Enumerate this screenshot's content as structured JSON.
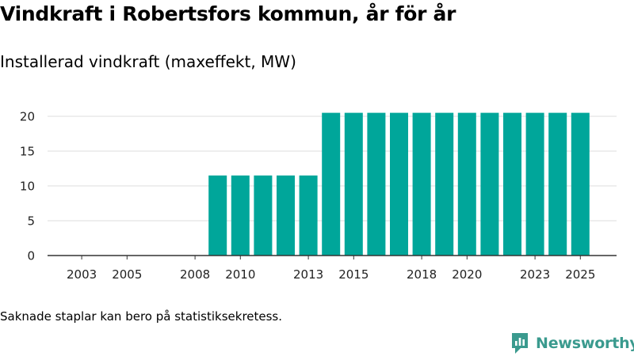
{
  "header": {
    "title": "Vindkraft i Robertsfors kommun, år för år",
    "subtitle": "Installerad vindkraft (maxeffekt, MW)"
  },
  "footer": {
    "note": "Saknade staplar kan bero på statistiksekretess.",
    "brand": "Newsworthy"
  },
  "colors": {
    "bar": "#00a69a",
    "grid": "#dddddd",
    "axis": "#333333",
    "brand": "#3a9a8e"
  },
  "chart_data": {
    "type": "bar",
    "title": "Vindkraft i Robertsfors kommun, år för år",
    "subtitle": "Installerad vindkraft (maxeffekt, MW)",
    "xlabel": "",
    "ylabel": "",
    "categories": [
      2002,
      2003,
      2004,
      2005,
      2006,
      2007,
      2008,
      2009,
      2010,
      2011,
      2012,
      2013,
      2014,
      2015,
      2016,
      2017,
      2018,
      2019,
      2020,
      2021,
      2022,
      2023,
      2024,
      2025
    ],
    "values": [
      0,
      0,
      0,
      0,
      0,
      0,
      0,
      11.5,
      11.5,
      11.5,
      11.5,
      11.5,
      20.5,
      20.5,
      20.5,
      20.5,
      20.5,
      20.5,
      20.5,
      20.5,
      20.5,
      20.5,
      20.5,
      20.5
    ],
    "x_tick_labels": [
      "2003",
      "2005",
      "2008",
      "2010",
      "2013",
      "2015",
      "2018",
      "2020",
      "2023",
      "2025"
    ],
    "y_ticks": [
      0,
      5,
      10,
      15,
      20
    ],
    "ylim": [
      0,
      21.5
    ],
    "grid": true
  }
}
